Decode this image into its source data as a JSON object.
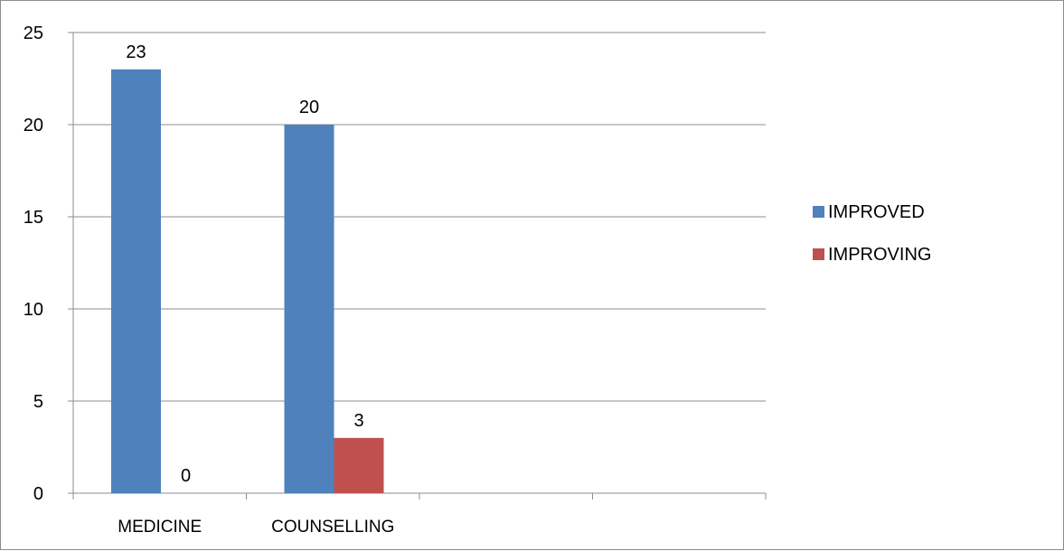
{
  "chart_data": {
    "type": "bar",
    "title": "",
    "xlabel": "",
    "ylabel": "",
    "categories": [
      "MEDICINE",
      "COUNSELLING",
      "",
      ""
    ],
    "series": [
      {
        "name": "IMPROVED",
        "color": "#4F81BD",
        "values": [
          23,
          20,
          null,
          null
        ]
      },
      {
        "name": "IMPROVING",
        "color": "#C0504D",
        "values": [
          0,
          3,
          null,
          null
        ]
      }
    ],
    "ylim": [
      0,
      25
    ],
    "yticks": [
      0,
      5,
      10,
      15,
      20,
      25
    ],
    "grid": true,
    "legend": "right",
    "data_labels": true
  }
}
